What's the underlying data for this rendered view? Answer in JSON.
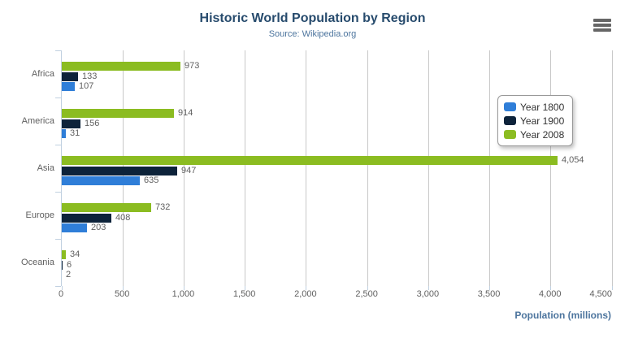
{
  "title": "Historic World Population by Region",
  "subtitle": "Source: Wikipedia.org",
  "export_menu": {
    "icon": "hamburger-icon"
  },
  "colors": {
    "title": "#274b6d",
    "subtitle": "#4d759e",
    "axis_labels": "#606060",
    "grid": "#c8c8c8",
    "axis_line": "#c0d0e0",
    "legend_border": "#999999"
  },
  "chart_data": {
    "type": "bar",
    "orientation": "horizontal",
    "title": "Historic World Population by Region",
    "subtitle": "Source: Wikipedia.org",
    "categories": [
      "Africa",
      "America",
      "Asia",
      "Europe",
      "Oceania"
    ],
    "series": [
      {
        "name": "Year 1800",
        "color": "#2f7ed8",
        "values": [
          107,
          31,
          635,
          203,
          2
        ],
        "labels": [
          "107",
          "31",
          "635",
          "203",
          "2"
        ]
      },
      {
        "name": "Year 1900",
        "color": "#0d233a",
        "values": [
          133,
          156,
          947,
          408,
          6
        ],
        "labels": [
          "133",
          "156",
          "947",
          "408",
          "6"
        ]
      },
      {
        "name": "Year 2008",
        "color": "#8bbc21",
        "values": [
          973,
          914,
          4054,
          732,
          34
        ],
        "labels": [
          "973",
          "914",
          "4,054",
          "732",
          "34"
        ]
      }
    ],
    "bar_display_order_top_to_bottom": [
      "Year 2008",
      "Year 1900",
      "Year 1800"
    ],
    "xlabel": "Population (millions)",
    "xlim": [
      0,
      4500
    ],
    "x_ticks": [
      {
        "value": 0,
        "label": "0"
      },
      {
        "value": 500,
        "label": "500"
      },
      {
        "value": 1000,
        "label": "1,000"
      },
      {
        "value": 1500,
        "label": "1,500"
      },
      {
        "value": 2000,
        "label": "2,000"
      },
      {
        "value": 2500,
        "label": "2,500"
      },
      {
        "value": 3000,
        "label": "3,000"
      },
      {
        "value": 3500,
        "label": "3,500"
      },
      {
        "value": 4000,
        "label": "4,000"
      },
      {
        "value": 4500,
        "label": "4,500"
      }
    ],
    "grid": true,
    "legend_position": "right-overlay"
  }
}
